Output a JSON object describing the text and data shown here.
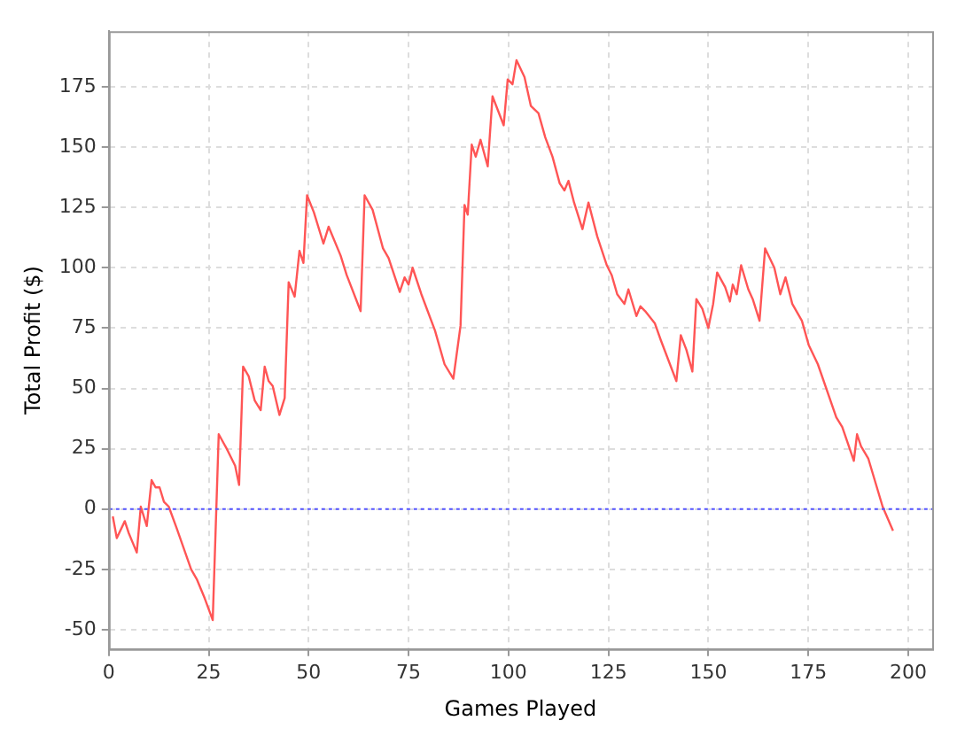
{
  "chart_data": {
    "type": "line",
    "xlabel": "Games Played",
    "ylabel": "Total Profit ($)",
    "xlim": [
      0,
      206
    ],
    "ylim": [
      -58,
      198
    ],
    "xticks": [
      0,
      25,
      50,
      75,
      100,
      125,
      150,
      175,
      200
    ],
    "yticks": [
      -50,
      -25,
      0,
      25,
      50,
      75,
      100,
      125,
      150,
      175
    ],
    "grid": true,
    "legend": false,
    "marker": "none",
    "line_style": "solid",
    "ref_lines": [
      {
        "axis": "y",
        "value": 0,
        "color": "#5555ff",
        "line_style": "dotted"
      }
    ],
    "series": [
      {
        "color": "#ff5555",
        "x": [
          1,
          2,
          4,
          5,
          6,
          7,
          8,
          9.5,
          10.7,
          11.7,
          12.7,
          13.8,
          15,
          17,
          20.6,
          22,
          24,
          26,
          27.5,
          29.5,
          31.6,
          32.6,
          33.6,
          35,
          36.5,
          38,
          39,
          40,
          41,
          42.7,
          44,
          45,
          46.5,
          47.7,
          48.7,
          49.6,
          51.3,
          53.7,
          55,
          58,
          59.5,
          63,
          64,
          66,
          68.6,
          70,
          72.8,
          74,
          75,
          76,
          78.2,
          81.6,
          84,
          86.2,
          88,
          89,
          89.8,
          90.8,
          91.8,
          93,
          94.8,
          96,
          98.8,
          99.8,
          101,
          102,
          104,
          105.6,
          107.5,
          109.2,
          111,
          112.8,
          114,
          115,
          116.4,
          118.5,
          120,
          122.2,
          124.6,
          125.8,
          127.2,
          129,
          130,
          132,
          133,
          134.2,
          136.6,
          138.1,
          142,
          143.1,
          144.5,
          146,
          147,
          148.5,
          150,
          151.2,
          152.2,
          154.2,
          155.4,
          156.1,
          157.1,
          158.2,
          160,
          161.1,
          162.8,
          164.2,
          166.5,
          168,
          169.3,
          171,
          173.4,
          175.1,
          177.4,
          182,
          183.5,
          186.4,
          187.2,
          188.2,
          190,
          193.6,
          196.2
        ],
        "values": [
          -3,
          -12,
          -5,
          -10,
          -14,
          -18,
          1,
          -7,
          12,
          9,
          9,
          3,
          1,
          -8,
          -25,
          -29,
          -37,
          -46,
          31,
          25,
          18,
          10,
          59,
          55,
          45,
          41,
          59,
          53,
          51,
          39,
          46,
          94,
          88,
          107,
          102,
          130,
          123,
          110,
          117,
          105,
          97,
          82,
          130,
          124,
          108,
          104,
          90,
          96,
          93,
          100,
          89,
          74,
          60,
          54,
          76,
          126,
          122,
          151,
          146,
          153,
          142,
          171,
          159,
          178,
          176,
          186,
          179,
          167,
          164,
          154,
          146,
          135,
          132,
          136,
          127,
          116,
          127,
          113,
          101,
          97,
          89,
          85,
          91,
          80,
          84,
          82,
          77,
          70,
          53,
          72,
          66,
          57,
          87,
          83,
          75,
          85,
          98,
          92,
          86,
          93,
          89,
          101,
          91,
          87,
          78,
          108,
          100,
          89,
          96,
          85,
          78,
          68,
          60,
          38,
          34,
          20,
          31,
          26,
          21,
          1,
          -9
        ]
      }
    ]
  }
}
